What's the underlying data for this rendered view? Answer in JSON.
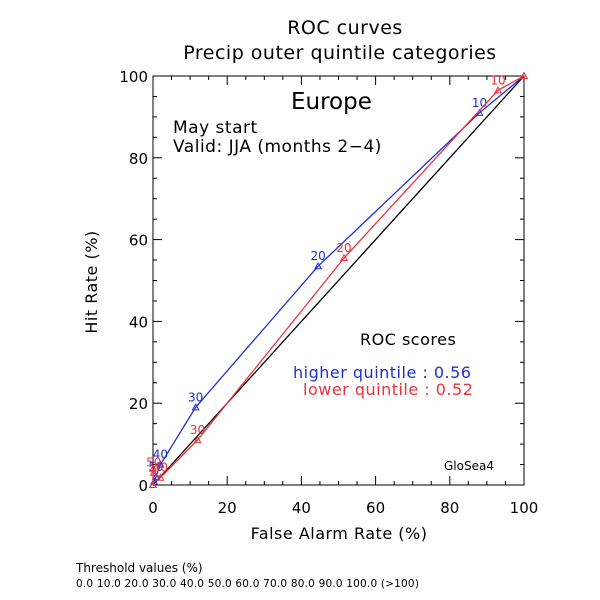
{
  "chart_data": {
    "type": "line",
    "title": "ROC curves",
    "subtitle": "Precip outer quintile categories",
    "region": "Europe",
    "start_text": "May start",
    "valid_text": "Valid: JJA (months 2−4)",
    "xlabel": "False Alarm Rate (%)",
    "ylabel": "Hit Rate (%)",
    "xlim": [
      0,
      100
    ],
    "ylim": [
      0,
      100
    ],
    "xticks": [
      0,
      20,
      40,
      60,
      80,
      100
    ],
    "yticks": [
      0,
      20,
      40,
      60,
      80,
      100
    ],
    "diagonal": true,
    "grid": false,
    "scores_title": "ROC scores",
    "model_label": "GloSea4",
    "series": [
      {
        "name": "higher quintile",
        "score_text": "higher quintile : 0.56",
        "color": "#1f2fd6",
        "points": [
          {
            "x": 100,
            "y": 100,
            "label": ""
          },
          {
            "x": 88,
            "y": 91,
            "label": "10"
          },
          {
            "x": 44.5,
            "y": 53.5,
            "label": "20"
          },
          {
            "x": 11.5,
            "y": 19,
            "label": "30"
          },
          {
            "x": 2,
            "y": 5,
            "label": "40"
          },
          {
            "x": 0.8,
            "y": 2,
            "label": "50"
          },
          {
            "x": 0.3,
            "y": 0.8,
            "label": ""
          },
          {
            "x": 0,
            "y": 0,
            "label": ""
          }
        ]
      },
      {
        "name": "lower quintile",
        "score_text": "lower quintile : 0.52",
        "color": "#e8323c",
        "points": [
          {
            "x": 100,
            "y": 100,
            "label": ""
          },
          {
            "x": 93,
            "y": 96.5,
            "label": "10"
          },
          {
            "x": 51.5,
            "y": 55.5,
            "label": "20"
          },
          {
            "x": 12,
            "y": 11,
            "label": "30"
          },
          {
            "x": 2,
            "y": 1.8,
            "label": "40"
          },
          {
            "x": 0.2,
            "y": 3,
            "label": "50"
          },
          {
            "x": 0,
            "y": 4,
            "label": ""
          },
          {
            "x": 0,
            "y": 0,
            "label": ""
          }
        ]
      }
    ]
  },
  "footer": {
    "threshold_title": "Threshold values (%)",
    "threshold_values": "0.0 10.0 20.0 30.0 40.0 50.0 60.0 70.0 80.0 90.0 100.0 (>100)"
  }
}
